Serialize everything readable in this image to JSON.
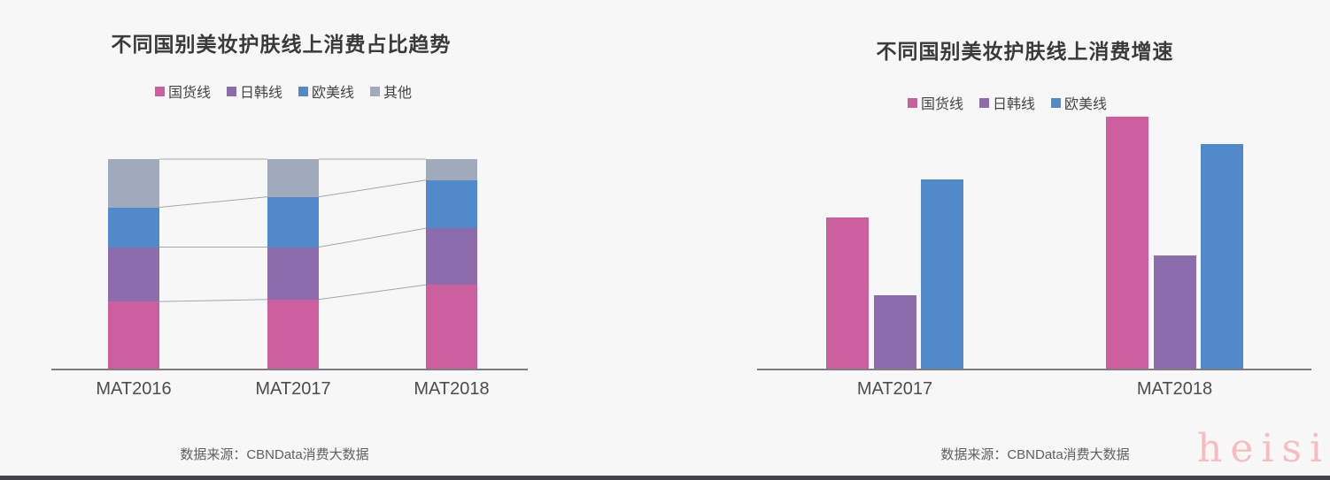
{
  "page": {
    "background": "#f7f7f8",
    "watermark": "heisi",
    "watermark_color": "#f6bdc0",
    "bottom_bar_color": "#44444c"
  },
  "colors": {
    "guohuo_pink": "#cc5f9d",
    "rihan_purple": "#8d6cae",
    "oumei_blue": "#5289cb",
    "qita_gray": "#a0aaba",
    "connector_gray": "#a6a6a6",
    "axis_gray": "#7d7d7d"
  },
  "chart_data": [
    {
      "type": "bar",
      "subtype": "stacked-100-percent",
      "title": "不同国别美妆护肤线上消费占比趋势",
      "categories": [
        "MAT2016",
        "MAT2017",
        "MAT2018"
      ],
      "series": [
        {
          "name": "国货线",
          "color": "#cc5f9d",
          "values": [
            32,
            33,
            40
          ]
        },
        {
          "name": "日韩线",
          "color": "#8d6cae",
          "values": [
            26,
            25,
            27
          ]
        },
        {
          "name": "欧美线",
          "color": "#5289cb",
          "values": [
            19,
            24,
            23
          ]
        },
        {
          "name": "其他",
          "color": "#a0aaba",
          "values": [
            23,
            18,
            10
          ]
        }
      ],
      "ylim": [
        0,
        100
      ],
      "grid": false,
      "legend_position": "top",
      "connectors": true,
      "source": "数据来源：CBNData消费大数据",
      "note": "y-axis unlabeled; values are percent shares estimated from segment heights"
    },
    {
      "type": "bar",
      "subtype": "grouped",
      "title": "不同国别美妆护肤线上消费增速",
      "categories": [
        "MAT2017",
        "MAT2018"
      ],
      "series": [
        {
          "name": "国货线",
          "color": "#cc5f9d",
          "values": [
            60,
            100
          ]
        },
        {
          "name": "日韩线",
          "color": "#8d6cae",
          "values": [
            29,
            45
          ]
        },
        {
          "name": "欧美线",
          "color": "#5289cb",
          "values": [
            75,
            89
          ]
        }
      ],
      "ylim": [
        0,
        100
      ],
      "grid": false,
      "legend_position": "top",
      "source": "数据来源：CBNData消费大数据",
      "note": "y-axis unlabeled; values are relative bar heights (tallest bar = 100)"
    }
  ]
}
